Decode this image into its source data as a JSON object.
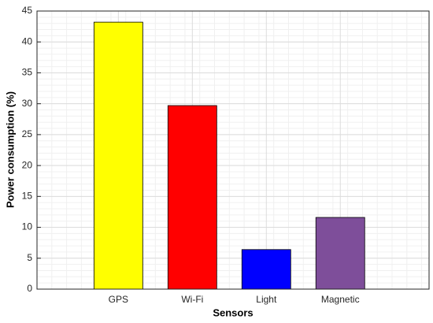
{
  "chart_data": {
    "type": "bar",
    "x_label": "Sensors",
    "y_label": "Power consumption (%)",
    "categories": [
      "GPS",
      "Wi-Fi",
      "Light",
      "Magnetic"
    ],
    "values": [
      43.2,
      29.7,
      6.4,
      11.6
    ],
    "colors": [
      "#ffff00",
      "#ff0000",
      "#0000ff",
      "#7e4e9a"
    ],
    "ylim": [
      0,
      45
    ],
    "yticks": [
      0,
      5,
      10,
      15,
      20,
      25,
      30,
      35,
      40,
      45
    ],
    "grid": true,
    "minor_grid": true
  }
}
